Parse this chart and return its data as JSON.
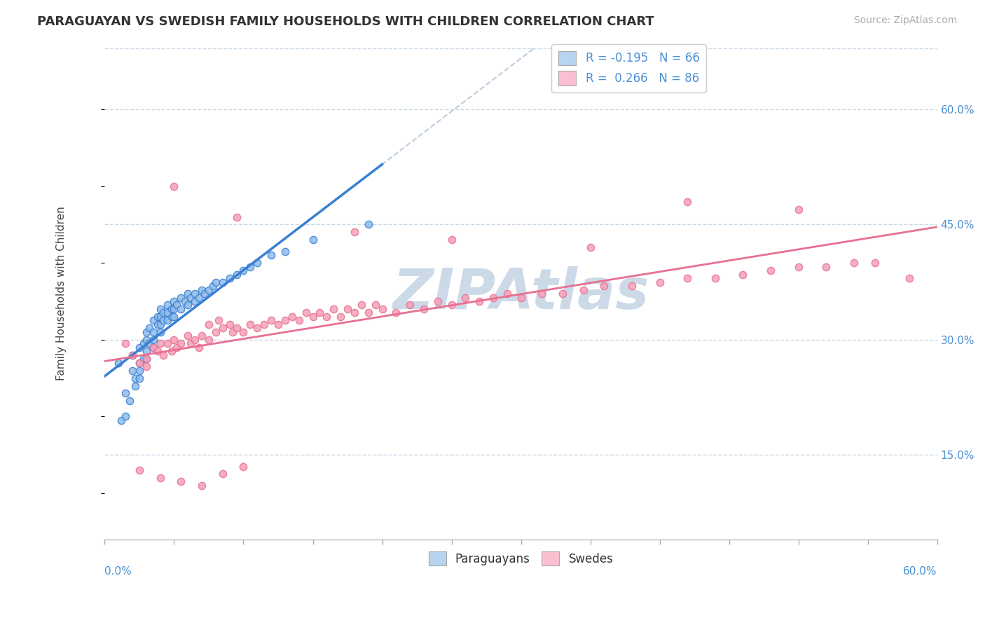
{
  "title": "PARAGUAYAN VS SWEDISH FAMILY HOUSEHOLDS WITH CHILDREN CORRELATION CHART",
  "source": "Source: ZipAtlas.com",
  "xlim": [
    0.0,
    0.6
  ],
  "ylim": [
    0.04,
    0.68
  ],
  "ylabel_ticks": [
    0.15,
    0.3,
    0.45,
    0.6
  ],
  "ylabel_tick_labels": [
    "15.0%",
    "30.0%",
    "45.0%",
    "60.0%"
  ],
  "watermark": "ZIPAtlas",
  "legend_r_items": [
    {
      "label": "R = -0.195   N = 66"
    },
    {
      "label": "R =  0.266   N = 86"
    }
  ],
  "bottom_legend": [
    "Paraguayans",
    "Swedes"
  ],
  "paraguayan_color": "#90bce8",
  "swedish_color": "#f5a0b8",
  "paraguayan_line_color": "#3a7fd4",
  "paraguayan_line_ext_color": "#a0b8d0",
  "swedish_line_color": "#e87090",
  "grid_color": "#c8d8e8",
  "background_color": "#ffffff",
  "watermark_color": "#ccdae8",
  "legend_patch_blue": "#b8d4f0",
  "legend_patch_pink": "#f8c0d0",
  "tick_label_color": "#4a90d4",
  "title_color": "#333333",
  "source_color": "#aaaaaa",
  "ylabel_label": "Family Households with Children",
  "paraguayans_x": [
    0.01,
    0.012,
    0.015,
    0.015,
    0.018,
    0.02,
    0.02,
    0.022,
    0.022,
    0.025,
    0.025,
    0.025,
    0.025,
    0.028,
    0.028,
    0.03,
    0.03,
    0.03,
    0.03,
    0.032,
    0.032,
    0.035,
    0.035,
    0.035,
    0.035,
    0.038,
    0.038,
    0.04,
    0.04,
    0.04,
    0.04,
    0.042,
    0.042,
    0.045,
    0.045,
    0.045,
    0.048,
    0.048,
    0.05,
    0.05,
    0.05,
    0.052,
    0.055,
    0.055,
    0.058,
    0.06,
    0.06,
    0.062,
    0.065,
    0.065,
    0.068,
    0.07,
    0.072,
    0.075,
    0.078,
    0.08,
    0.085,
    0.09,
    0.095,
    0.1,
    0.105,
    0.11,
    0.12,
    0.13,
    0.15,
    0.19
  ],
  "paraguayans_y": [
    0.27,
    0.195,
    0.23,
    0.2,
    0.22,
    0.28,
    0.26,
    0.25,
    0.24,
    0.29,
    0.27,
    0.26,
    0.25,
    0.295,
    0.275,
    0.31,
    0.3,
    0.285,
    0.275,
    0.315,
    0.295,
    0.325,
    0.31,
    0.3,
    0.29,
    0.33,
    0.32,
    0.34,
    0.33,
    0.32,
    0.31,
    0.335,
    0.325,
    0.345,
    0.335,
    0.325,
    0.34,
    0.33,
    0.35,
    0.34,
    0.33,
    0.345,
    0.355,
    0.34,
    0.35,
    0.36,
    0.345,
    0.355,
    0.36,
    0.35,
    0.355,
    0.365,
    0.36,
    0.365,
    0.37,
    0.375,
    0.375,
    0.38,
    0.385,
    0.39,
    0.395,
    0.4,
    0.41,
    0.415,
    0.43,
    0.45
  ],
  "swedes_x": [
    0.015,
    0.02,
    0.025,
    0.03,
    0.03,
    0.035,
    0.038,
    0.04,
    0.042,
    0.045,
    0.048,
    0.05,
    0.052,
    0.055,
    0.06,
    0.062,
    0.065,
    0.068,
    0.07,
    0.075,
    0.075,
    0.08,
    0.082,
    0.085,
    0.09,
    0.092,
    0.095,
    0.1,
    0.105,
    0.11,
    0.115,
    0.12,
    0.125,
    0.13,
    0.135,
    0.14,
    0.145,
    0.15,
    0.155,
    0.16,
    0.165,
    0.17,
    0.175,
    0.18,
    0.185,
    0.19,
    0.195,
    0.2,
    0.21,
    0.22,
    0.23,
    0.24,
    0.25,
    0.26,
    0.27,
    0.28,
    0.29,
    0.3,
    0.315,
    0.33,
    0.345,
    0.36,
    0.38,
    0.4,
    0.42,
    0.44,
    0.46,
    0.48,
    0.5,
    0.52,
    0.54,
    0.555,
    0.05,
    0.095,
    0.18,
    0.25,
    0.35,
    0.42,
    0.5,
    0.58,
    0.025,
    0.04,
    0.055,
    0.07,
    0.085,
    0.1
  ],
  "swedes_y": [
    0.295,
    0.28,
    0.27,
    0.275,
    0.265,
    0.29,
    0.285,
    0.295,
    0.28,
    0.295,
    0.285,
    0.3,
    0.29,
    0.295,
    0.305,
    0.295,
    0.3,
    0.29,
    0.305,
    0.3,
    0.32,
    0.31,
    0.325,
    0.315,
    0.32,
    0.31,
    0.315,
    0.31,
    0.32,
    0.315,
    0.32,
    0.325,
    0.32,
    0.325,
    0.33,
    0.325,
    0.335,
    0.33,
    0.335,
    0.33,
    0.34,
    0.33,
    0.34,
    0.335,
    0.345,
    0.335,
    0.345,
    0.34,
    0.335,
    0.345,
    0.34,
    0.35,
    0.345,
    0.355,
    0.35,
    0.355,
    0.36,
    0.355,
    0.36,
    0.36,
    0.365,
    0.37,
    0.37,
    0.375,
    0.38,
    0.38,
    0.385,
    0.39,
    0.395,
    0.395,
    0.4,
    0.4,
    0.5,
    0.46,
    0.44,
    0.43,
    0.42,
    0.48,
    0.47,
    0.38,
    0.13,
    0.12,
    0.115,
    0.11,
    0.125,
    0.135
  ]
}
